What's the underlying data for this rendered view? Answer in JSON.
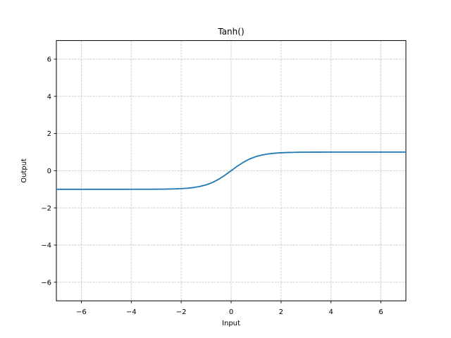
{
  "chart_data": {
    "type": "line",
    "title": "Tanh()",
    "xlabel": "Input",
    "ylabel": "Output",
    "xlim": [
      -7,
      7
    ],
    "ylim": [
      -7,
      7
    ],
    "xticks": [
      -6,
      -4,
      -2,
      0,
      2,
      4,
      6
    ],
    "xtick_labels": [
      "−6",
      "−4",
      "−2",
      "0",
      "2",
      "4",
      "6"
    ],
    "yticks": [
      -6,
      -4,
      -2,
      0,
      2,
      4,
      6
    ],
    "ytick_labels": [
      "−6",
      "−4",
      "−2",
      "0",
      "2",
      "4",
      "6"
    ],
    "grid": true,
    "grid_style": "dashed",
    "legend": false,
    "colors": {
      "background": "#ffffff",
      "grid": "#cccccc",
      "spine": "#000000",
      "text": "#000000"
    },
    "series": [
      {
        "name": "tanh",
        "color": "#1f77b4",
        "x": [
          -7,
          -6.75,
          -6.5,
          -6.25,
          -6,
          -5.75,
          -5.5,
          -5.25,
          -5,
          -4.75,
          -4.5,
          -4.25,
          -4,
          -3.75,
          -3.5,
          -3.25,
          -3,
          -2.75,
          -2.5,
          -2.25,
          -2,
          -1.75,
          -1.5,
          -1.25,
          -1,
          -0.75,
          -0.5,
          -0.25,
          0,
          0.25,
          0.5,
          0.75,
          1,
          1.25,
          1.5,
          1.75,
          2,
          2.25,
          2.5,
          2.75,
          3,
          3.25,
          3.5,
          3.75,
          4,
          4.25,
          4.5,
          4.75,
          5,
          5.25,
          5.5,
          5.75,
          6,
          6.25,
          6.5,
          6.75,
          7
        ],
        "y": [
          -1,
          -1,
          -0.99999,
          -0.99999,
          -0.99999,
          -0.99998,
          -0.99997,
          -0.99994,
          -0.99991,
          -0.99985,
          -0.99975,
          -0.99959,
          -0.99933,
          -0.99889,
          -0.99818,
          -0.997,
          -0.99505,
          -0.99186,
          -0.98661,
          -0.97803,
          -0.96403,
          -0.94138,
          -0.90515,
          -0.84828,
          -0.76159,
          -0.63515,
          -0.46212,
          -0.24492,
          0,
          0.24492,
          0.46212,
          0.63515,
          0.76159,
          0.84828,
          0.90515,
          0.94138,
          0.96403,
          0.97803,
          0.98661,
          0.99186,
          0.99505,
          0.997,
          0.99818,
          0.99889,
          0.99933,
          0.99959,
          0.99975,
          0.99985,
          0.99991,
          0.99994,
          0.99997,
          0.99998,
          0.99999,
          0.99999,
          0.99999,
          1,
          1
        ]
      }
    ]
  }
}
